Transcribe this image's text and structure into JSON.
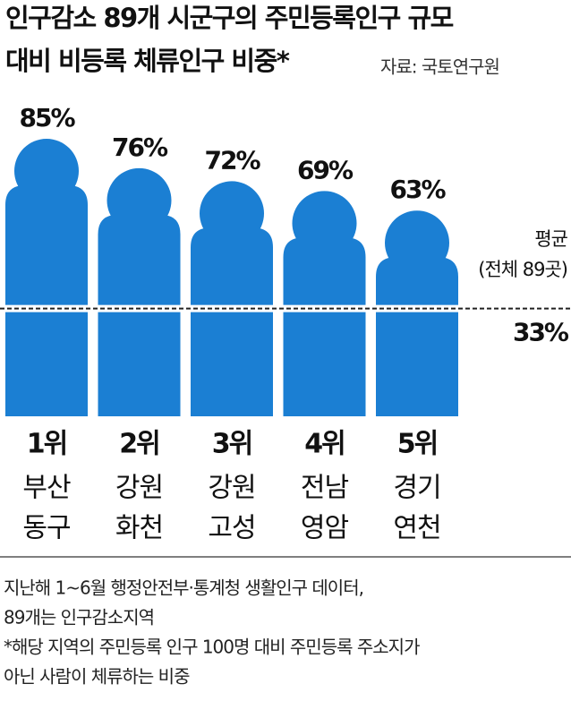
{
  "chart_data": {
    "type": "bar",
    "title": [
      "인구감소 89개 시군구의 주민등록인구 규모",
      "대비 비등록 체류인구 비중*"
    ],
    "source": "자료: 국토연구원",
    "categories": [
      "1위",
      "2위",
      "3위",
      "4위",
      "5위"
    ],
    "regions": [
      [
        "부산",
        "동구"
      ],
      [
        "강원",
        "화천"
      ],
      [
        "강원",
        "고성"
      ],
      [
        "전남",
        "영암"
      ],
      [
        "경기",
        "연천"
      ]
    ],
    "values": [
      85,
      76,
      72,
      69,
      63
    ],
    "value_labels": [
      "85%",
      "76%",
      "72%",
      "69%",
      "63%"
    ],
    "color": "#1b7fd3",
    "average": {
      "label": [
        "평균",
        "(전체 89곳)"
      ],
      "value": 33,
      "value_label": "33%"
    },
    "notes": [
      "지난해 1~6월 행정안전부·통계청 생활인구 데이터,",
      "89개는 인구감소지역",
      "*해당 지역의 주민등록 인구 100명 대비 주민등록 주소지가",
      " 아닌 사람이 체류하는 비중"
    ]
  }
}
